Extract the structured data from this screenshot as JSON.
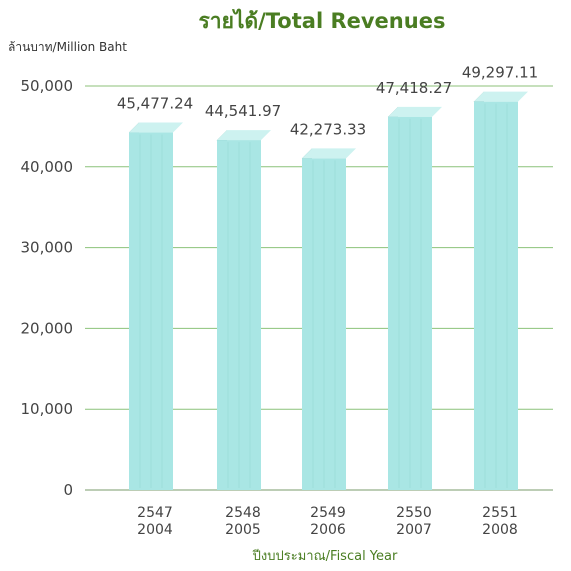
{
  "chart_data": {
    "type": "bar",
    "title": "รายได้/Total Revenues",
    "ylabel": "ล้านบาท/Million Baht",
    "xlabel": "ปีงบประมาณ/Fiscal Year",
    "categories": [
      "2547",
      "2548",
      "2549",
      "2550",
      "2551"
    ],
    "categories_secondary": [
      "2004",
      "2005",
      "2006",
      "2007",
      "2008"
    ],
    "values": [
      45477.24,
      44541.97,
      42273.33,
      47418.27,
      49297.11
    ],
    "value_labels": [
      "45,477.24",
      "44,541.97",
      "42,273.33",
      "47,418.27",
      "49,297.11"
    ],
    "yticks": [
      "0",
      "10,000",
      "20,000",
      "30,000",
      "40,000",
      "50,000"
    ],
    "ytick_values": [
      0,
      10000,
      20000,
      30000,
      40000,
      50000
    ],
    "ylim": [
      0,
      50000
    ],
    "grid": true,
    "bar_style": "3d",
    "colors": {
      "bar_front": "#a9e6e4",
      "bar_side": "#5fa9a4",
      "bar_top": "#cdf2f0",
      "title": "#4a7d22",
      "grid": "#8cc27a"
    }
  }
}
